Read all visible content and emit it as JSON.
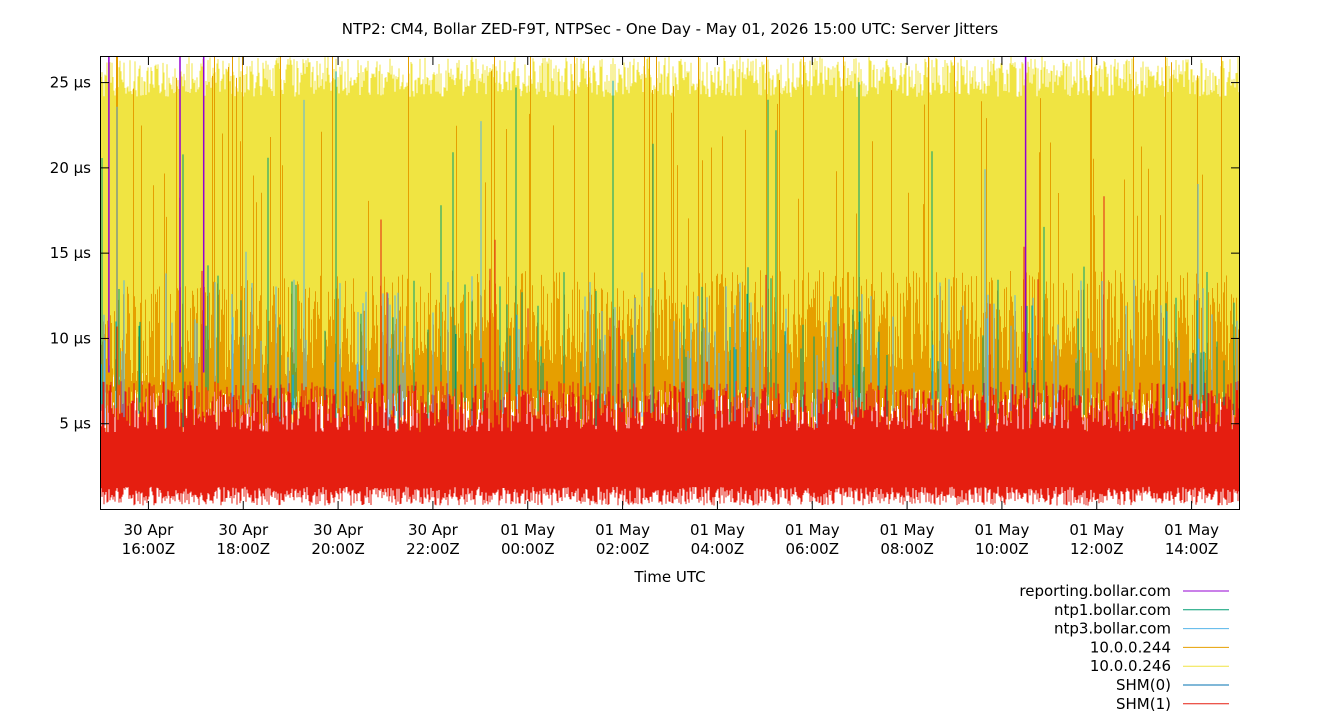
{
  "chart_data": {
    "type": "line",
    "title": "NTP2: CM4, Bollar ZED-F9T, NTPSec - One Day - May 01, 2026 15:00 UTC: Server Jitters",
    "xlabel": "Time UTC",
    "ylabel": "",
    "x_range": [
      "2026-04-30T15:00Z",
      "2026-05-01T15:00Z"
    ],
    "ylim": [
      0,
      26.5
    ],
    "y_ticks": [
      {
        "value": 5,
        "label": "5 µs"
      },
      {
        "value": 10,
        "label": "10 µs"
      },
      {
        "value": 15,
        "label": "15 µs"
      },
      {
        "value": 20,
        "label": "20 µs"
      },
      {
        "value": 25,
        "label": "25 µs"
      }
    ],
    "x_ticks": [
      {
        "time": "2026-04-30T16:00Z",
        "line1": "30 Apr",
        "line2": "16:00Z"
      },
      {
        "time": "2026-04-30T18:00Z",
        "line1": "30 Apr",
        "line2": "18:00Z"
      },
      {
        "time": "2026-04-30T20:00Z",
        "line1": "30 Apr",
        "line2": "20:00Z"
      },
      {
        "time": "2026-04-30T22:00Z",
        "line1": "30 Apr",
        "line2": "22:00Z"
      },
      {
        "time": "2026-05-01T00:00Z",
        "line1": "01 May",
        "line2": "00:00Z"
      },
      {
        "time": "2026-05-01T02:00Z",
        "line1": "01 May",
        "line2": "02:00Z"
      },
      {
        "time": "2026-05-01T04:00Z",
        "line1": "01 May",
        "line2": "04:00Z"
      },
      {
        "time": "2026-05-01T06:00Z",
        "line1": "01 May",
        "line2": "06:00Z"
      },
      {
        "time": "2026-05-01T08:00Z",
        "line1": "01 May",
        "line2": "08:00Z"
      },
      {
        "time": "2026-05-01T10:00Z",
        "line1": "01 May",
        "line2": "10:00Z"
      },
      {
        "time": "2026-05-01T12:00Z",
        "line1": "01 May",
        "line2": "12:00Z"
      },
      {
        "time": "2026-05-01T14:00Z",
        "line1": "01 May",
        "line2": "14:00Z"
      }
    ],
    "grid": false,
    "legend_position": "bottom-right",
    "series": [
      {
        "name": "reporting.bollar.com",
        "color": "#9400d3",
        "values": [
          {
            "t": "2026-04-30T15:10Z",
            "y": 26.5
          },
          {
            "t": "2026-04-30T16:40Z",
            "y": 26.5
          },
          {
            "t": "2026-04-30T17:10Z",
            "y": 26.5
          },
          {
            "t": "2026-05-01T10:30Z",
            "y": 26.5
          }
        ]
      },
      {
        "name": "ntp1.bollar.com",
        "color": "#009e73",
        "values": [
          {
            "t": "2026-04-30T15:00Z",
            "y": 9
          },
          {
            "t": "2026-04-30T21:00Z",
            "y": 8
          },
          {
            "t": "2026-05-01T03:00Z",
            "y": 8.5
          },
          {
            "t": "2026-05-01T09:00Z",
            "y": 8
          },
          {
            "t": "2026-05-01T15:00Z",
            "y": 8.5
          }
        ]
      },
      {
        "name": "ntp3.bollar.com",
        "color": "#56b4e9",
        "values": [
          {
            "t": "2026-04-30T15:00Z",
            "y": 8
          },
          {
            "t": "2026-04-30T21:00Z",
            "y": 7.5
          },
          {
            "t": "2026-05-01T03:00Z",
            "y": 8
          },
          {
            "t": "2026-05-01T09:00Z",
            "y": 7.5
          },
          {
            "t": "2026-05-01T15:00Z",
            "y": 8
          }
        ]
      },
      {
        "name": "10.0.0.244",
        "color": "#e69f00",
        "values": [
          {
            "t": "2026-04-30T15:00Z",
            "y": 10
          },
          {
            "t": "2026-04-30T21:00Z",
            "y": 11
          },
          {
            "t": "2026-05-01T03:00Z",
            "y": 11
          },
          {
            "t": "2026-05-01T09:00Z",
            "y": 11
          },
          {
            "t": "2026-05-01T15:00Z",
            "y": 11
          }
        ]
      },
      {
        "name": "10.0.0.246",
        "color": "#f0e442",
        "values": [
          {
            "t": "2026-04-30T15:00Z",
            "y": 26.5
          },
          {
            "t": "2026-04-30T21:00Z",
            "y": 26.5
          },
          {
            "t": "2026-05-01T03:00Z",
            "y": 26.5
          },
          {
            "t": "2026-05-01T09:00Z",
            "y": 26.5
          },
          {
            "t": "2026-05-01T15:00Z",
            "y": 26.5
          }
        ]
      },
      {
        "name": "SHM(0)",
        "color": "#0072b2",
        "values": []
      },
      {
        "name": "SHM(1)",
        "color": "#e51e10",
        "values": [
          {
            "t": "2026-04-30T15:00Z",
            "y": 6
          },
          {
            "t": "2026-04-30T22:00Z",
            "y": 6
          },
          {
            "t": "2026-05-01T05:00Z",
            "y": 6
          },
          {
            "t": "2026-05-01T12:00Z",
            "y": 6
          },
          {
            "t": "2026-05-01T15:00Z",
            "y": 6
          }
        ]
      }
    ]
  }
}
